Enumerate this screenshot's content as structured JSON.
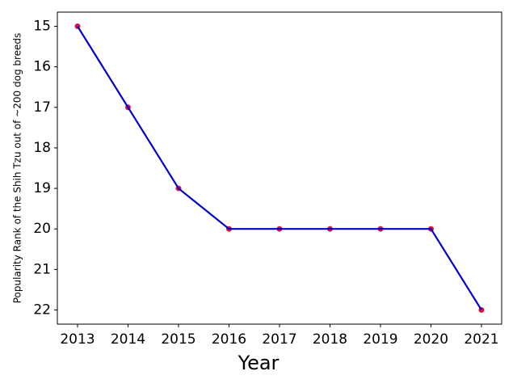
{
  "chart_data": {
    "type": "line",
    "x_label": "Year",
    "y_label": "Popularity Rank of the Shih Tzu out of ~200 dog breeds",
    "x": [
      2013,
      2014,
      2015,
      2016,
      2017,
      2018,
      2019,
      2020,
      2021
    ],
    "series": [
      {
        "name": "Shih Tzu",
        "color": "#0000cd",
        "marker_color": "#dc143c",
        "values": [
          15,
          17,
          19,
          20,
          20,
          20,
          20,
          20,
          22
        ]
      }
    ],
    "xlim": [
      2012.6,
      2021.4
    ],
    "xticks": [
      2013,
      2014,
      2015,
      2016,
      2017,
      2018,
      2019,
      2020,
      2021
    ],
    "ylim": [
      22.35,
      14.65
    ],
    "yticks": [
      15,
      16,
      17,
      18,
      19,
      20,
      21,
      22
    ],
    "grid": false
  }
}
